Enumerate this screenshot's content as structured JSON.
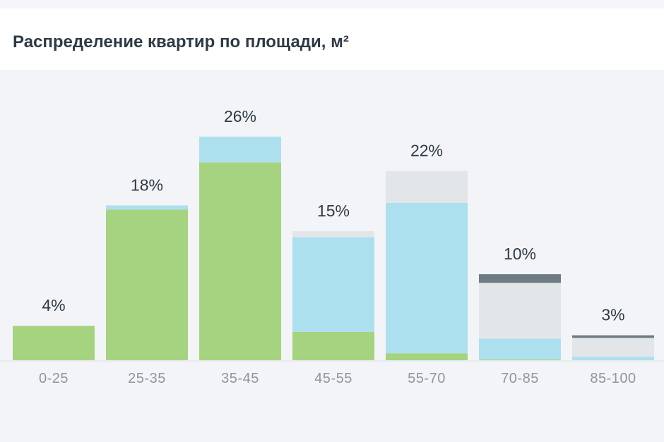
{
  "chart_data": {
    "type": "bar",
    "stacked": true,
    "title": "Распределение квартир по площади, м²",
    "categories": [
      "0-25",
      "25-35",
      "35-45",
      "45-55",
      "55-70",
      "70-85",
      "85-100"
    ],
    "totals_labels": [
      "4%",
      "18%",
      "26%",
      "15%",
      "22%",
      "10%",
      "3%"
    ],
    "series": [
      {
        "color": "#a6d37f",
        "values": [
          4.0,
          17.5,
          23.0,
          3.3,
          0.8,
          0.1,
          0.0
        ]
      },
      {
        "color": "#ade0ee",
        "values": [
          0.0,
          0.5,
          3.0,
          11.0,
          17.5,
          2.4,
          0.4
        ]
      },
      {
        "color": "#e3e6e8",
        "values": [
          0.0,
          0.0,
          0.0,
          0.7,
          3.7,
          6.5,
          2.2
        ]
      },
      {
        "color": "#6f7b82",
        "values": [
          0.0,
          0.0,
          0.0,
          0.0,
          0.0,
          1.0,
          0.3
        ]
      }
    ],
    "ylim": [
      0,
      28
    ],
    "grid": false,
    "legend": "none"
  }
}
